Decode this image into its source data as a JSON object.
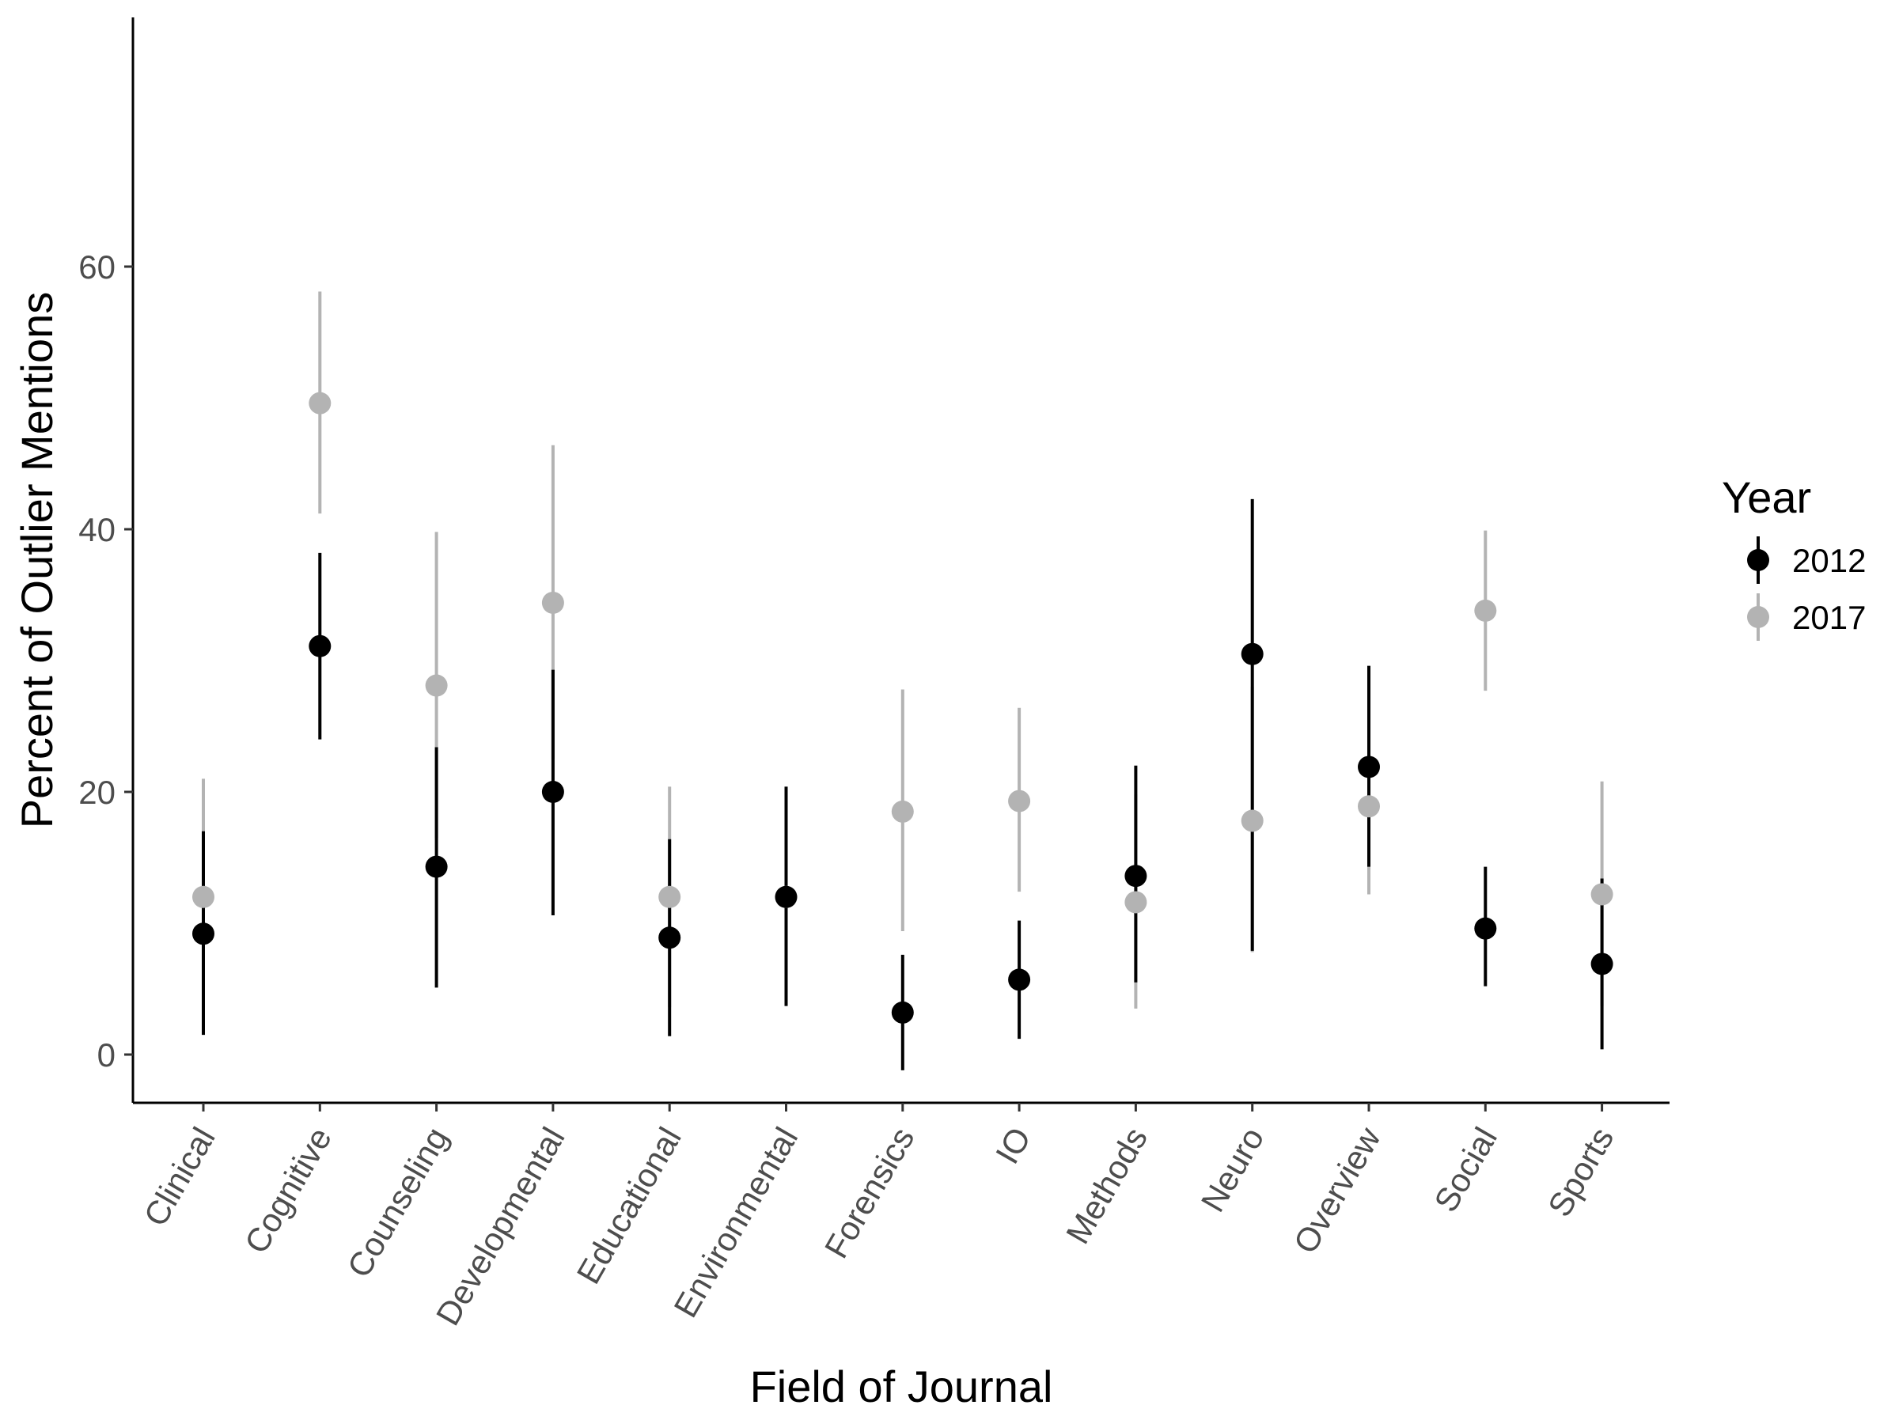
{
  "chart_data": {
    "type": "scatter",
    "title": "",
    "xlabel": "Field of Journal",
    "ylabel": "Percent of Outlier Mentions",
    "ylim": [
      -3.5,
      78
    ],
    "yticks": [
      0,
      20,
      40,
      60
    ],
    "grid": false,
    "legend": {
      "title": "Year",
      "position": "right"
    },
    "categories": [
      "Clinical",
      "Cognitive",
      "Counseling",
      "Developmental",
      "Educational",
      "Environmental",
      "Forensics",
      "IO",
      "Methods",
      "Neuro",
      "Overview",
      "Social",
      "Sports"
    ],
    "series": [
      {
        "name": "2012",
        "color": "#000000",
        "values": [
          9.2,
          31.1,
          14.3,
          20.0,
          8.9,
          12.0,
          3.2,
          5.7,
          13.6,
          30.5,
          21.9,
          9.6,
          6.9
        ],
        "lower": [
          1.5,
          24.0,
          5.1,
          10.6,
          1.4,
          3.7,
          -1.2,
          1.2,
          5.5,
          7.9,
          14.3,
          5.2,
          0.4
        ],
        "upper": [
          17.0,
          38.2,
          23.4,
          29.3,
          16.4,
          20.4,
          7.6,
          10.2,
          22.0,
          42.3,
          29.6,
          14.3,
          13.4
        ]
      },
      {
        "name": "2017",
        "color": "#b3b3b3",
        "values": [
          12.0,
          49.6,
          28.1,
          34.4,
          12.0,
          12.0,
          18.5,
          19.3,
          11.6,
          17.8,
          18.9,
          33.8,
          12.2
        ],
        "lower": [
          3.0,
          41.2,
          16.5,
          22.5,
          3.6,
          3.7,
          9.4,
          12.4,
          3.5,
          7.8,
          12.2,
          27.7,
          3.7
        ],
        "upper": [
          21.0,
          58.1,
          39.8,
          46.4,
          20.4,
          20.4,
          27.8,
          26.4,
          19.8,
          28.0,
          25.6,
          39.9,
          20.8
        ]
      }
    ]
  }
}
